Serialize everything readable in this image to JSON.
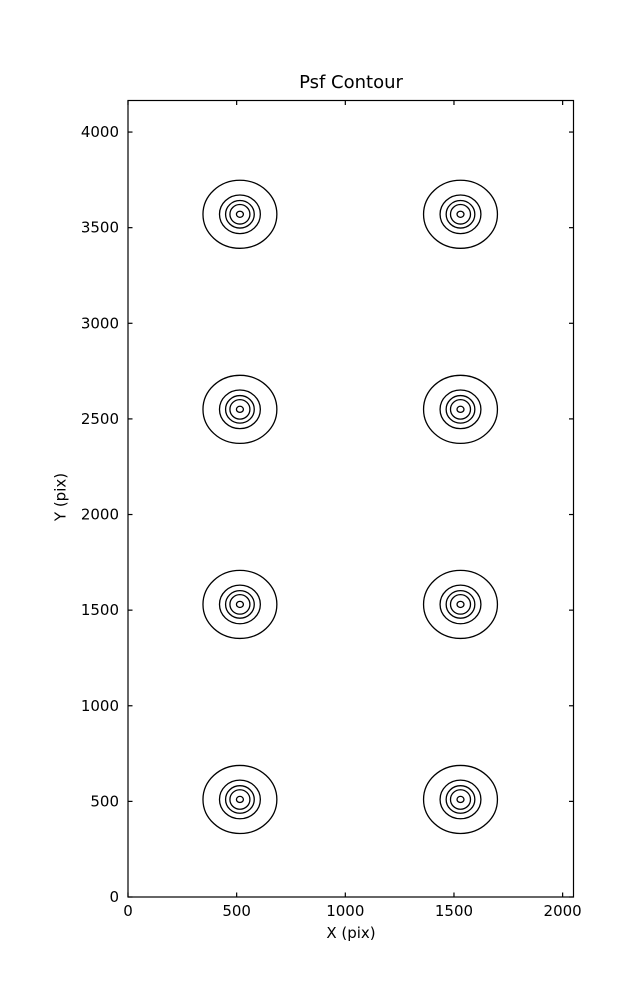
{
  "chart_data": {
    "type": "contour",
    "title": "Psf Contour",
    "xlabel": "X (pix)",
    "ylabel": "Y (pix)",
    "xlim": [
      0,
      2050
    ],
    "ylim": [
      0,
      4165
    ],
    "xticks": [
      0,
      500,
      1000,
      1500,
      2000
    ],
    "yticks": [
      0,
      500,
      1000,
      1500,
      2000,
      2500,
      3000,
      3500,
      4000
    ],
    "grid": false,
    "legend": false,
    "line_color": "#000000",
    "axes_color": "#000000",
    "background_color": "#ffffff",
    "n_contour_levels": 5,
    "psf_centers": [
      {
        "x": 515,
        "y": 3570
      },
      {
        "x": 1530,
        "y": 3570
      },
      {
        "x": 515,
        "y": 2550
      },
      {
        "x": 1530,
        "y": 2550
      },
      {
        "x": 515,
        "y": 1530
      },
      {
        "x": 1530,
        "y": 1530
      },
      {
        "x": 515,
        "y": 510
      },
      {
        "x": 1530,
        "y": 510
      }
    ],
    "contour_rx": [
      170,
      94,
      66,
      46,
      16
    ],
    "contour_ry": [
      178,
      101,
      72,
      51,
      16
    ]
  }
}
